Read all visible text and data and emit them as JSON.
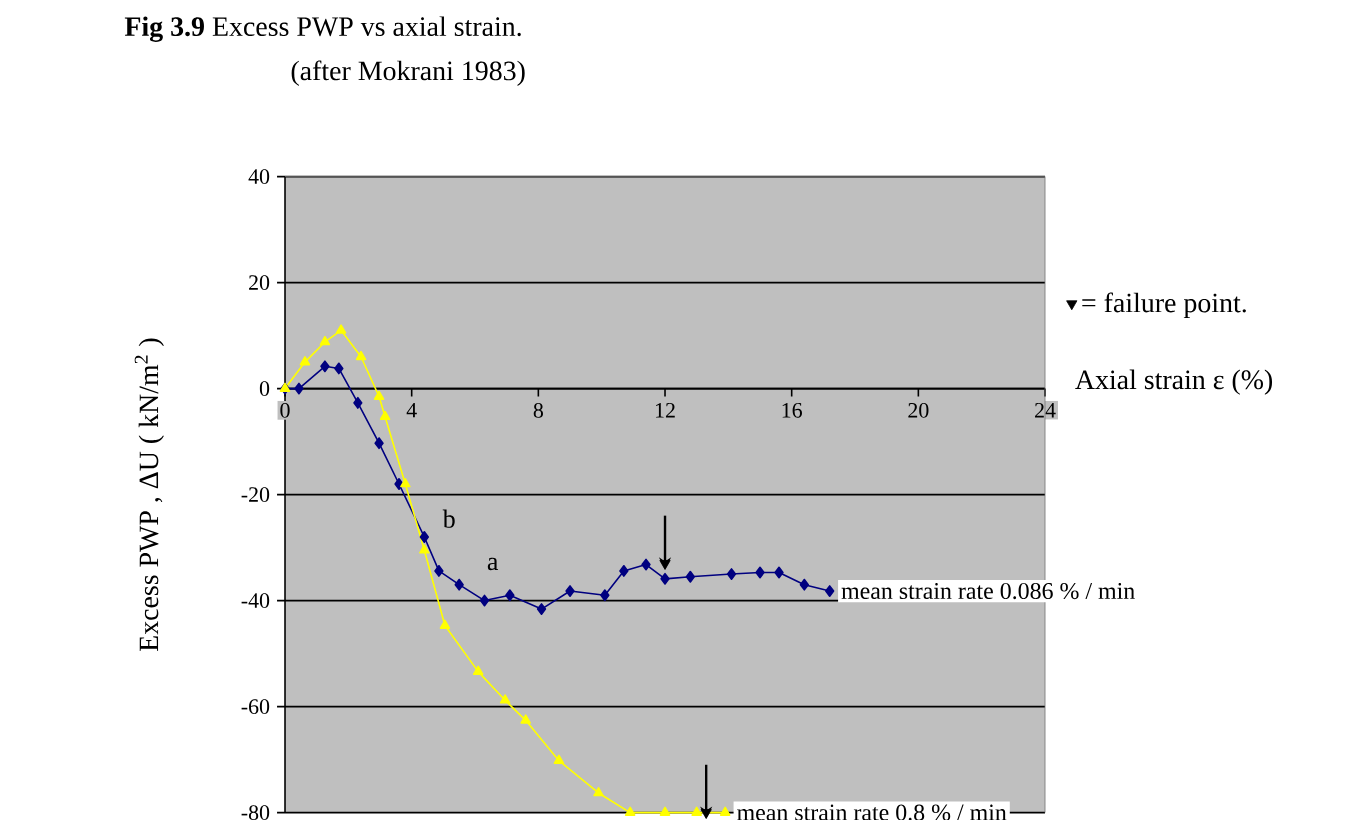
{
  "chart_data": {
    "type": "line",
    "title": "**Fig 3.9** Excess PWP vs axial strain.",
    "subtitle": "(after Mokrani 1983)",
    "xlabel": "Axial strain ε (%)",
    "ylabel": "Excess PWP , ΔU ( kN/m$^{2}$ )",
    "xlim": [
      0,
      24
    ],
    "xticks": [
      0,
      4,
      8,
      12,
      16,
      20,
      24
    ],
    "ylim": [
      -80,
      40
    ],
    "yticks": [
      -80,
      -60,
      -40,
      -20,
      0,
      20,
      40
    ],
    "grid": "y",
    "legend": "right",
    "series": [
      {
        "name": "a",
        "color": "#000080",
        "marker": "diamond",
        "x": [
          0,
          0.44,
          1.26,
          1.7,
          2.3,
          2.97,
          3.6,
          4.4,
          4.86,
          5.5,
          6.3,
          7.1,
          8.1,
          9.0,
          10.1,
          10.7,
          11.4,
          12.0,
          12.8,
          14.1,
          15.0,
          15.6,
          16.4,
          17.2
        ],
        "values": [
          0,
          0,
          4.2,
          3.8,
          -2.7,
          -10.3,
          -18,
          -28,
          -34.4,
          -37,
          -40,
          -39,
          -41.6,
          -38.2,
          -39,
          -34.4,
          -33.2,
          -35.9,
          -35.5,
          -35,
          -34.7,
          -34.7,
          -37,
          -38.2
        ]
      },
      {
        "name": "b",
        "color": "#ffff00",
        "marker": "triangle",
        "x": [
          0,
          0.63,
          1.26,
          1.77,
          2.4,
          2.97,
          3.16,
          3.8,
          4.4,
          5.05,
          6.1,
          6.95,
          7.6,
          8.65,
          9.9,
          10.9,
          12.0,
          13.0,
          13.9
        ],
        "values": [
          0,
          5,
          8.8,
          11,
          6,
          -1.5,
          -5.3,
          -18,
          -30.5,
          -44.7,
          -53.4,
          -58.8,
          -62.6,
          -70.2,
          -76.3,
          -80,
          -80,
          -80,
          -80
        ]
      },
      {
        "name": "= failure point.",
        "type": "scatter",
        "color": "#000000",
        "marker": "triangle",
        "x": [
          12.0,
          13.3
        ],
        "values": [
          -33,
          -80
        ]
      }
    ],
    "annotations": [
      {
        "text": "mean strain rate 0.086 % / min",
        "x": 17.2,
        "y": -38.2
      },
      {
        "text": "mean strain rate 0.8 % / min",
        "x": 13.9,
        "y": -80
      }
    ]
  }
}
